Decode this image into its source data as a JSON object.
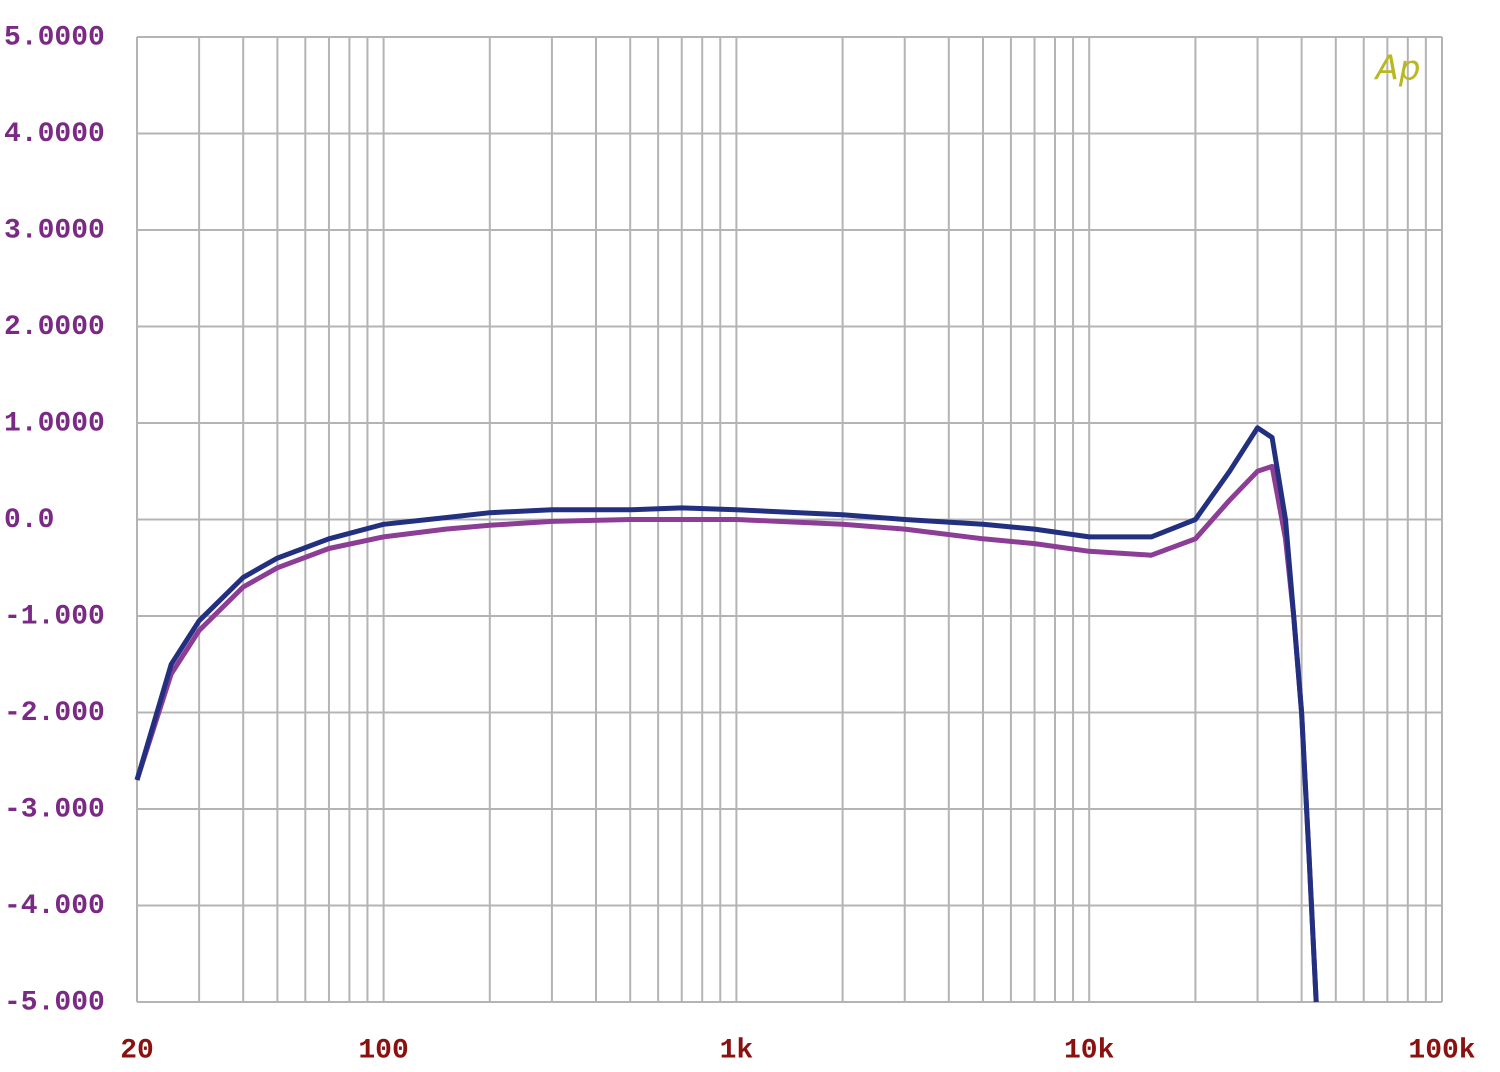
{
  "chart_data": {
    "type": "line",
    "logo": "Ap",
    "xscale": "log",
    "grid": true,
    "xlim": [
      20,
      100000
    ],
    "xticks": [
      20,
      100,
      {
        "value": 1000,
        "label": "1k"
      },
      {
        "value": 10000,
        "label": "10k"
      },
      {
        "value": 100000,
        "label": "100k"
      }
    ],
    "x_minor_ticks": [
      30,
      40,
      50,
      60,
      70,
      80,
      90,
      200,
      300,
      400,
      500,
      600,
      700,
      800,
      900,
      2000,
      3000,
      4000,
      5000,
      6000,
      7000,
      8000,
      9000,
      20000,
      30000,
      40000,
      50000,
      60000,
      70000,
      80000,
      90000
    ],
    "ylim": [
      -5,
      5
    ],
    "yticks": [
      {
        "value": 5,
        "label": "5.0000"
      },
      {
        "value": 4,
        "label": "4.0000"
      },
      {
        "value": 3,
        "label": "3.0000"
      },
      {
        "value": 2,
        "label": "2.0000"
      },
      {
        "value": 1,
        "label": "1.0000"
      },
      {
        "value": 0,
        "label": "0.0"
      },
      {
        "value": -1,
        "label": "-1.000"
      },
      {
        "value": -2,
        "label": "-2.000"
      },
      {
        "value": -3,
        "label": "-3.000"
      },
      {
        "value": -4,
        "label": "-4.000"
      },
      {
        "value": -5,
        "label": "-5.000"
      }
    ],
    "x": [
      20,
      25,
      30,
      40,
      50,
      70,
      100,
      150,
      200,
      300,
      500,
      700,
      1000,
      2000,
      3000,
      5000,
      7000,
      10000,
      15000,
      20000,
      25000,
      30000,
      33000,
      36000,
      38000,
      40000,
      42000,
      44000
    ],
    "series": [
      {
        "color": "#22307f",
        "values": [
          -2.7,
          -1.5,
          -1.05,
          -0.6,
          -0.4,
          -0.2,
          -0.05,
          0.02,
          0.07,
          0.1,
          0.1,
          0.12,
          0.1,
          0.05,
          0.0,
          -0.05,
          -0.1,
          -0.18,
          -0.18,
          0.0,
          0.5,
          0.95,
          0.85,
          0.0,
          -1.0,
          -2.0,
          -3.5,
          -5.0
        ]
      },
      {
        "color": "#8c3d96",
        "values": [
          -2.7,
          -1.6,
          -1.15,
          -0.7,
          -0.5,
          -0.3,
          -0.18,
          -0.1,
          -0.06,
          -0.02,
          0.0,
          0.0,
          0.0,
          -0.05,
          -0.1,
          -0.2,
          -0.25,
          -0.33,
          -0.37,
          -0.2,
          0.2,
          0.5,
          0.55,
          -0.2,
          -1.0,
          -2.0,
          -3.5,
          -5.0
        ]
      }
    ]
  }
}
